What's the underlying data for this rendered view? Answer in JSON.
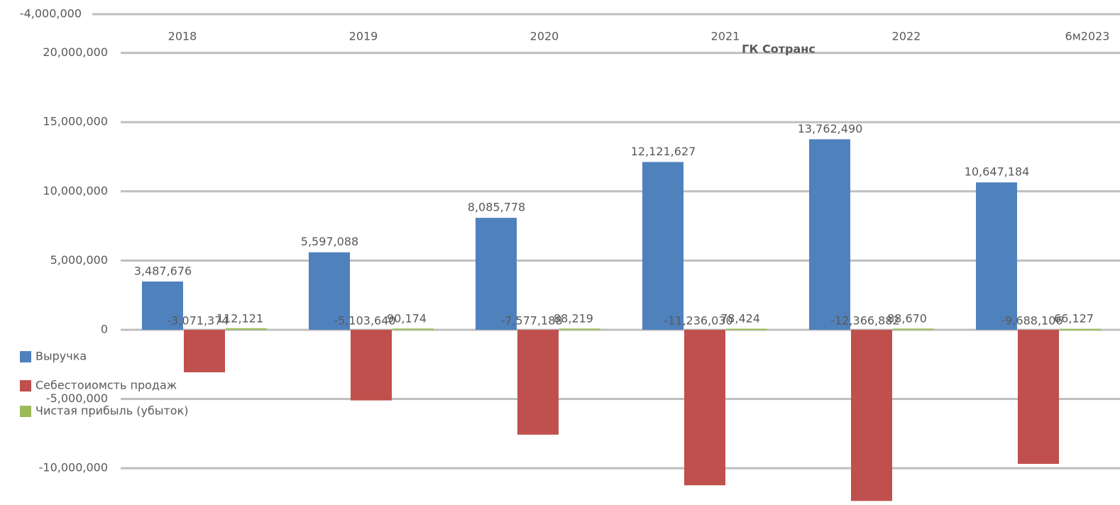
{
  "chart_data": {
    "type": "bar",
    "title": "ГК Сотранс",
    "top_annotation": "-4,000,000",
    "categories": [
      "2018",
      "2019",
      "2020",
      "2021",
      "2022",
      "6м2023"
    ],
    "series": [
      {
        "name": "Выручка",
        "color": "#4f81bd",
        "values": [
          3487676,
          5597088,
          8085778,
          12121627,
          13762490,
          10647184
        ],
        "value_labels": [
          "3,487,676",
          "5,597,088",
          "8,085,778",
          "12,121,627",
          "13,762,490",
          "10,647,184"
        ]
      },
      {
        "name": "Себестоиомсть продаж",
        "color": "#c0504d",
        "values": [
          -3071374,
          -5103640,
          -7577188,
          -11236030,
          -12366882,
          -9688106
        ],
        "value_labels": [
          "-3,071,374",
          "-5,103,640",
          "-7,577,188",
          "-11,236,030",
          "-12,366,882",
          "-9,688,106"
        ]
      },
      {
        "name": "Чистая прибыль (убыток)",
        "color": "#9bbb59",
        "values": [
          112121,
          90174,
          88219,
          78424,
          88670,
          66127
        ],
        "value_labels": [
          "112,121",
          "90,174",
          "88,219",
          "78,424",
          "88,670",
          "66,127"
        ]
      }
    ],
    "ylim": [
      -12300000,
      22800000
    ],
    "yticks": [
      {
        "value": -10000000,
        "label": "-10,000,000"
      },
      {
        "value": -5000000,
        "label": "-5,000,000"
      },
      0,
      {
        "value": 5000000,
        "label": "5,000,000"
      },
      {
        "value": 10000000,
        "label": "10,000,000"
      },
      {
        "value": 15000000,
        "label": "15,000,000"
      },
      {
        "value": 20000000,
        "label": "20,000,000"
      }
    ],
    "grid": true,
    "legend": "left"
  }
}
